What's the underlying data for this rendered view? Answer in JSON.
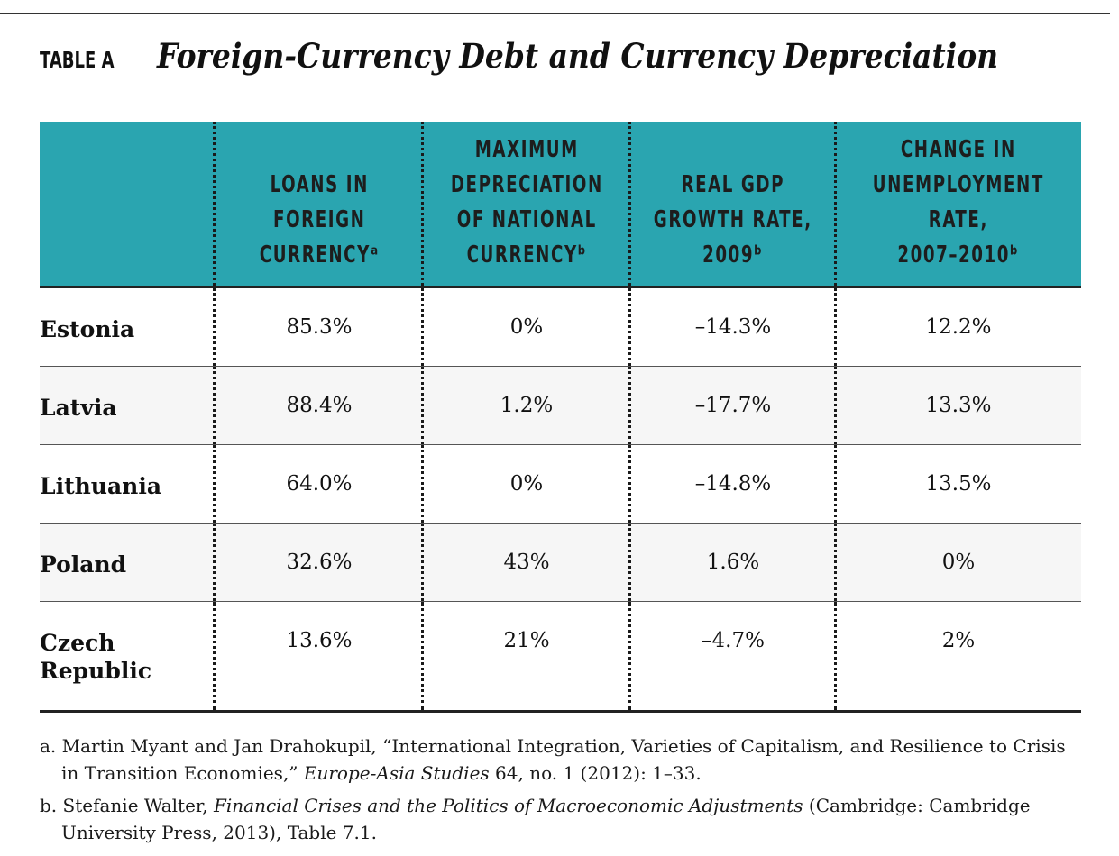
{
  "table_label": "TABLE A",
  "title": "Foreign-Currency Debt and Currency Depreciation",
  "headers": [
    "LOANS IN\nFOREIGN\nCURRENCYᵃ",
    "MAXIMUM\nDEPRECIATION\nOF NATIONAL\nCURRENCYᵇ",
    "REAL GDP\nGROWTH RATE,\n2009ᵇ",
    "CHANGE IN\nUNEMPLOYMENT\nRATE,\n2007–2010ᵇ"
  ],
  "rows": [
    {
      "country": "Estonia",
      "values": [
        "85.3%",
        "0%",
        "–14.3%",
        "12.2%"
      ]
    },
    {
      "country": "Latvia",
      "values": [
        "88.4%",
        "1.2%",
        "–17.7%",
        "13.3%"
      ]
    },
    {
      "country": "Lithuania",
      "values": [
        "64.0%",
        "0%",
        "–14.8%",
        "13.5%"
      ]
    },
    {
      "country": "Poland",
      "values": [
        "32.6%",
        "43%",
        "1.6%",
        "0%"
      ]
    },
    {
      "country": "Czech\nRepublic",
      "values": [
        "13.6%",
        "21%",
        "–4.7%",
        "2%"
      ]
    }
  ],
  "footnotes": {
    "a": {
      "pre": "a. Martin Myant and Jan Drahokupil, “International Integration, Varieties of Capitalism, and Resilience to Crisis in Transition Economies,” ",
      "journal": "Europe-Asia Studies",
      "post": " 64, no. 1 (2012): 1–33."
    },
    "b": {
      "pre": "b. Stefanie Walter, ",
      "book": "Financial Crises and the Politics of Macroeconomic Adjustments",
      "post": " (Cambridge: Cambridge University Press, 2013), Table 7.1."
    }
  }
}
